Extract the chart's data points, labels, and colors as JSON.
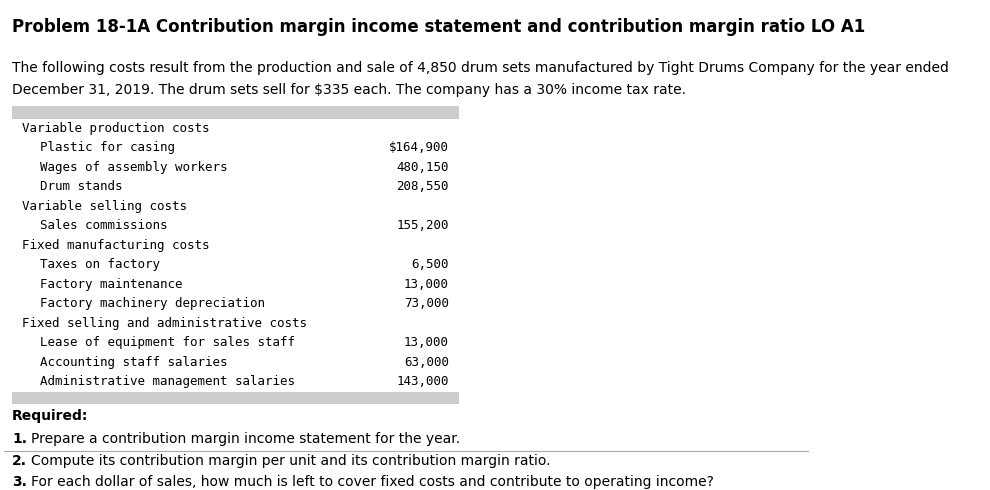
{
  "title": "Problem 18-1A Contribution margin income statement and contribution margin ratio LO A1",
  "intro_line1": "The following costs result from the production and sale of 4,850 drum sets manufactured by Tight Drums Company for the year ended",
  "intro_line2": "December 31, 2019. The drum sets sell for $335 each. The company has a 30% income tax rate.",
  "table_rows": [
    {
      "label": "Variable production costs",
      "value": "",
      "indent": 0
    },
    {
      "label": "Plastic for casing",
      "value": "$164,900",
      "indent": 1
    },
    {
      "label": "Wages of assembly workers",
      "value": "480,150",
      "indent": 1
    },
    {
      "label": "Drum stands",
      "value": "208,550",
      "indent": 1
    },
    {
      "label": "Variable selling costs",
      "value": "",
      "indent": 0
    },
    {
      "label": "Sales commissions",
      "value": "155,200",
      "indent": 1
    },
    {
      "label": "Fixed manufacturing costs",
      "value": "",
      "indent": 0
    },
    {
      "label": "Taxes on factory",
      "value": "6,500",
      "indent": 1
    },
    {
      "label": "Factory maintenance",
      "value": "13,000",
      "indent": 1
    },
    {
      "label": "Factory machinery depreciation",
      "value": "73,000",
      "indent": 1
    },
    {
      "label": "Fixed selling and administrative costs",
      "value": "",
      "indent": 0
    },
    {
      "label": "Lease of equipment for sales staff",
      "value": "13,000",
      "indent": 1
    },
    {
      "label": "Accounting staff salaries",
      "value": "63,000",
      "indent": 1
    },
    {
      "label": "Administrative management salaries",
      "value": "143,000",
      "indent": 1
    }
  ],
  "required_label": "Required:",
  "required_items": [
    "1.\tPrepare a contribution margin income statement for the year.",
    "2.\tCompute its contribution margin per unit and its contribution margin ratio.",
    "3.\tFor each dollar of sales, how much is left to cover fixed costs and contribute to operating income?"
  ],
  "table_bg_color": "#cccccc",
  "bg_color": "#ffffff",
  "title_fontsize": 12,
  "body_fontsize": 10,
  "mono_fontsize": 9,
  "required_fontsize": 10
}
